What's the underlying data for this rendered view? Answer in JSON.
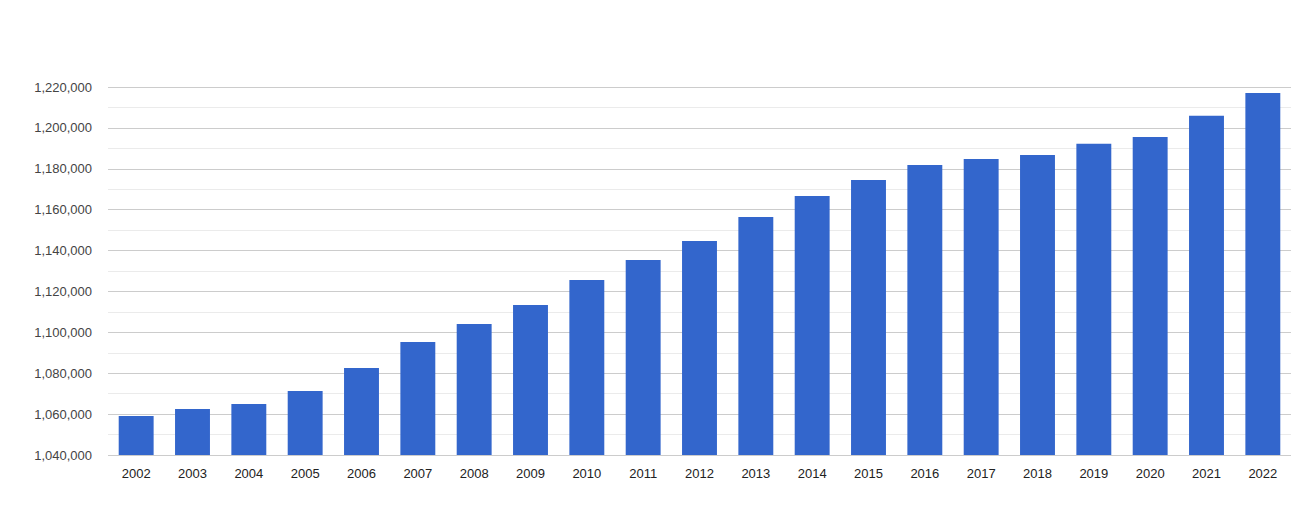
{
  "chart_data": {
    "type": "bar",
    "categories": [
      "2002",
      "2003",
      "2004",
      "2005",
      "2006",
      "2007",
      "2008",
      "2009",
      "2010",
      "2011",
      "2012",
      "2013",
      "2014",
      "2015",
      "2016",
      "2017",
      "2018",
      "2019",
      "2020",
      "2021",
      "2022"
    ],
    "values": [
      1059100,
      1062500,
      1065000,
      1071300,
      1082600,
      1095300,
      1104100,
      1113400,
      1125600,
      1135400,
      1144700,
      1156400,
      1166700,
      1174500,
      1181900,
      1184800,
      1186800,
      1192200,
      1195600,
      1205900,
      1217100
    ],
    "color": "#3366cc",
    "ylim": [
      1040000,
      1220000
    ],
    "yticks": [
      {
        "value": 1040000,
        "label": "1,040,000"
      },
      {
        "value": 1060000,
        "label": "1,060,000"
      },
      {
        "value": 1080000,
        "label": "1,080,000"
      },
      {
        "value": 1100000,
        "label": "1,100,000"
      },
      {
        "value": 1120000,
        "label": "1,120,000"
      },
      {
        "value": 1140000,
        "label": "1,140,000"
      },
      {
        "value": 1160000,
        "label": "1,160,000"
      },
      {
        "value": 1180000,
        "label": "1,180,000"
      },
      {
        "value": 1200000,
        "label": "1,200,000"
      },
      {
        "value": 1220000,
        "label": "1,220,000"
      }
    ],
    "grid": true
  }
}
